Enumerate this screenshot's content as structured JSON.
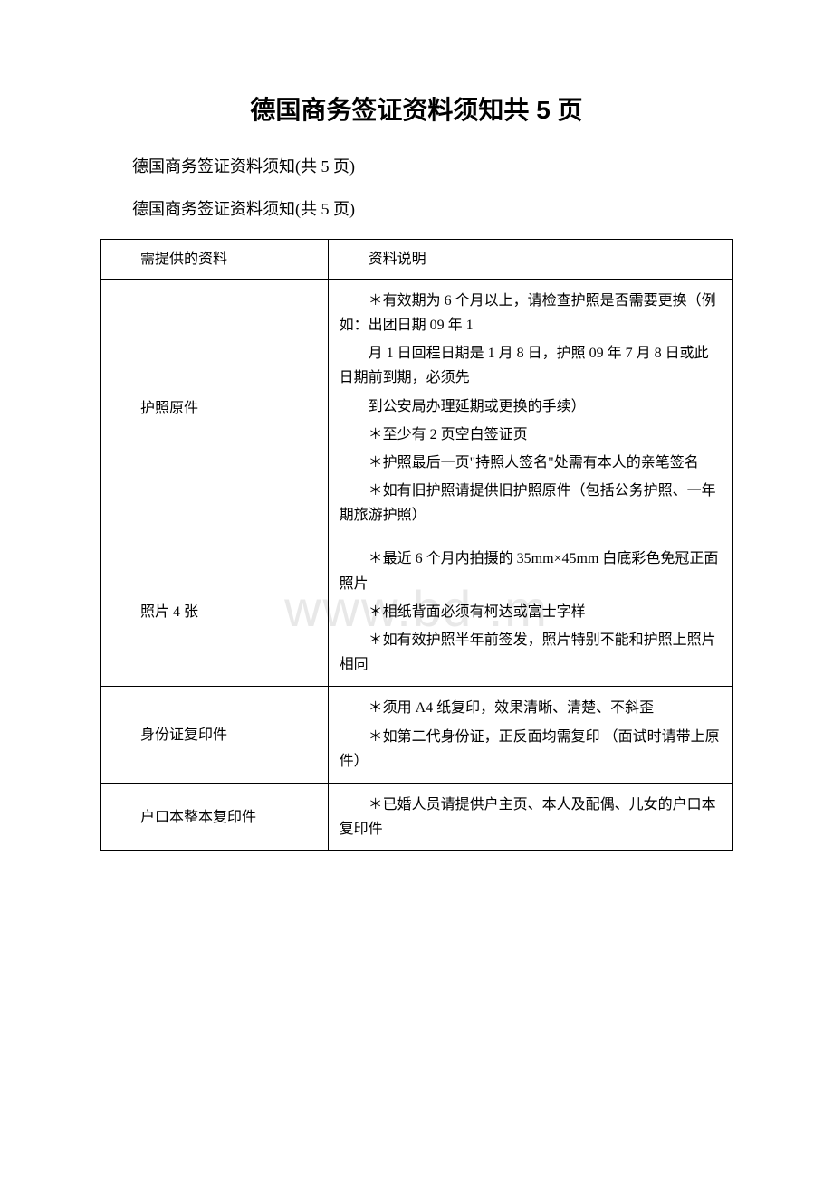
{
  "title": "德国商务签证资料须知共 5 页",
  "subtitle1": "德国商务签证资料须知(共 5 页)",
  "subtitle2": "德国商务签证资料须知(共 5 页)",
  "watermark": "www.bd      .m",
  "table": {
    "header": {
      "col1": "需提供的资料",
      "col2": "资料说明"
    },
    "rows": [
      {
        "label": "护照原件",
        "paras": [
          "＊有效期为 6 个月以上，请检查护照是否需要更换（例如：出团日期 09 年 1",
          "月 1 日回程日期是 1 月 8 日，护照 09 年 7 月 8 日或此日期前到期，必须先",
          "到公安局办理延期或更换的手续）",
          "＊至少有 2 页空白签证页",
          "＊护照最后一页\"持照人签名\"处需有本人的亲笔签名",
          "＊如有旧护照请提供旧护照原件（包括公务护照、一年期旅游护照）"
        ]
      },
      {
        "label": "照片 4 张",
        "paras": [
          "＊最近 6 个月内拍摄的 35mm×45mm 白底彩色免冠正面照片",
          "＊相纸背面必须有柯达或富士字样",
          "＊如有效护照半年前签发，照片特别不能和护照上照片相同"
        ]
      },
      {
        "label": "身份证复印件",
        "paras": [
          "＊须用 A4 纸复印，效果清晰、清楚、不斜歪",
          "＊如第二代身份证，正反面均需复印 （面试时请带上原件）"
        ]
      },
      {
        "label": "户口本整本复印件",
        "paras": [
          "＊已婚人员请提供户主页、本人及配偶、儿女的户口本复印件"
        ]
      }
    ]
  }
}
